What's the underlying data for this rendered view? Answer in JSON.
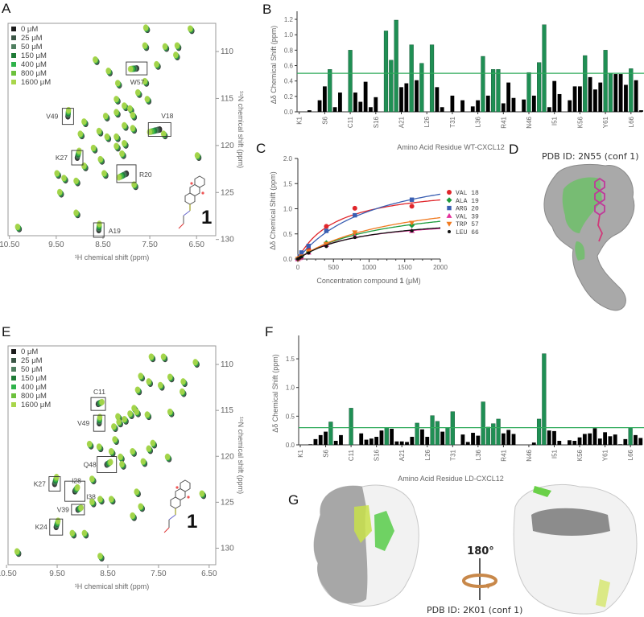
{
  "panel_labels": {
    "A": "A",
    "B": "B",
    "C": "C",
    "D": "D",
    "E": "E",
    "F": "F",
    "G": "G"
  },
  "structures": {
    "D": {
      "title": "PDB ID: 2N55 (conf 1)"
    },
    "G": {
      "title": "PDB ID: 2K01 (conf 1)",
      "rotation": "180°"
    }
  },
  "colors": {
    "conc": [
      "#1c1c1c",
      "#3b5646",
      "#4f7f60",
      "#1e7b36",
      "#2fb34b",
      "#6cc13c",
      "#a9d64b"
    ],
    "highlight": "#1f8f54",
    "bar": "#000000",
    "threshold_line": "#2eaa5a"
  },
  "chart_data": [
    {
      "id": "A",
      "type": "scatter",
      "subtype": "HSQC overlay",
      "xlabel": "¹H chemical shift (ppm)",
      "ylabel": "¹⁵N chemical shift (ppm)",
      "xlim": [
        10.53,
        6.09
      ],
      "ylim": [
        107.0,
        129.6
      ],
      "xticks": [
        {
          "v": 10.5,
          "t": "10.50"
        },
        {
          "v": 9.5,
          "t": "9.50"
        },
        {
          "v": 8.5,
          "t": "8.50"
        },
        {
          "v": 7.5,
          "t": "7.50"
        },
        {
          "v": 6.5,
          "t": "6.50"
        }
      ],
      "yticks": [
        {
          "v": 110,
          "t": "110"
        },
        {
          "v": 115,
          "t": "115"
        },
        {
          "v": 120,
          "t": "120"
        },
        {
          "v": 125,
          "t": "125"
        },
        {
          "v": 130,
          "t": "130"
        }
      ],
      "legend": [
        "0 μM",
        "25 μM",
        "50 μM",
        "150 μM",
        "400 μM",
        "800 μM",
        "1600 μM"
      ],
      "compound_label": "1",
      "labeled_peaks": [
        {
          "label": "W57",
          "h": 7.78,
          "n": 111.8
        },
        {
          "label": "V49",
          "h": 9.25,
          "n": 116.9
        },
        {
          "label": "V18",
          "h": 7.29,
          "n": 118.3
        },
        {
          "label": "K27",
          "h": 9.05,
          "n": 121.3
        },
        {
          "label": "R20",
          "h": 8.0,
          "n": 123.0
        },
        {
          "label": "A19",
          "h": 8.59,
          "n": 129.0
        }
      ],
      "peaks": [
        [
          7.55,
          107.7
        ],
        [
          6.6,
          107.8
        ],
        [
          7.57,
          109.6
        ],
        [
          7.14,
          109.7
        ],
        [
          6.88,
          109.6
        ],
        [
          6.91,
          110.6
        ],
        [
          8.63,
          111.1
        ],
        [
          7.32,
          111.6
        ],
        [
          8.35,
          112.3
        ],
        [
          8.15,
          113.6
        ],
        [
          7.57,
          113.4
        ],
        [
          7.72,
          114.6
        ],
        [
          8.18,
          115.3
        ],
        [
          8.01,
          116.0
        ],
        [
          7.52,
          115.3
        ],
        [
          8.41,
          117.1
        ],
        [
          8.18,
          116.7
        ],
        [
          7.89,
          116.3
        ],
        [
          7.83,
          117.0
        ],
        [
          8.87,
          117.7
        ],
        [
          8.95,
          119.0
        ],
        [
          8.55,
          118.7
        ],
        [
          8.38,
          119.3
        ],
        [
          8.18,
          119.3
        ],
        [
          8.01,
          118.1
        ],
        [
          7.83,
          118.4
        ],
        [
          7.17,
          119.0
        ],
        [
          8.67,
          120.5
        ],
        [
          8.18,
          120.3
        ],
        [
          8.01,
          120.0
        ],
        [
          8.87,
          122.4
        ],
        [
          8.52,
          121.7
        ],
        [
          8.44,
          123.2
        ],
        [
          9.45,
          123.2
        ],
        [
          9.3,
          123.7
        ],
        [
          9.04,
          124.0
        ],
        [
          9.39,
          125.2
        ],
        [
          7.8,
          124.4
        ],
        [
          9.04,
          127.4
        ],
        [
          10.29,
          128.9
        ],
        [
          6.45,
          121.3
        ],
        [
          8.06,
          121.1
        ]
      ]
    },
    {
      "id": "B",
      "type": "bar",
      "xlabel": "Amino Acid Residue WT-CXCL12",
      "ylabel": "Δδ Chemical Shift (ppm)",
      "ylim": [
        0,
        1.25
      ],
      "yticks": [
        {
          "v": 0,
          "t": "0.0"
        },
        {
          "v": 0.2,
          "t": "0.2"
        },
        {
          "v": 0.4,
          "t": "0.4"
        },
        {
          "v": 0.6,
          "t": "0.6"
        },
        {
          "v": 0.8,
          "t": "0.8"
        },
        {
          "v": 1.0,
          "t": "1.0"
        },
        {
          "v": 1.2,
          "t": "1.2"
        }
      ],
      "xticks": [
        {
          "r": 1,
          "t": "K1"
        },
        {
          "r": 6,
          "t": "S6"
        },
        {
          "r": 11,
          "t": "C11"
        },
        {
          "r": 16,
          "t": "S16"
        },
        {
          "r": 21,
          "t": "A21"
        },
        {
          "r": 26,
          "t": "L26"
        },
        {
          "r": 31,
          "t": "T31"
        },
        {
          "r": 36,
          "t": "L36"
        },
        {
          "r": 41,
          "t": "R41"
        },
        {
          "r": 46,
          "t": "N46"
        },
        {
          "r": 51,
          "t": "I51"
        },
        {
          "r": 56,
          "t": "K56"
        },
        {
          "r": 61,
          "t": "Y61"
        },
        {
          "r": 66,
          "t": "L66"
        }
      ],
      "threshold": 0.5,
      "values": [
        0,
        0,
        0.02,
        0,
        0.15,
        0.33,
        0.55,
        0.06,
        0.25,
        0,
        0.8,
        0.25,
        0.13,
        0.39,
        0.06,
        0.19,
        0,
        1.05,
        0.67,
        1.19,
        0.32,
        0.37,
        0.87,
        0.41,
        0.63,
        0,
        0.87,
        0.32,
        0.06,
        0,
        0.21,
        0,
        0.15,
        0,
        0.07,
        0.15,
        0.72,
        0.21,
        0.55,
        0.55,
        0.11,
        0.38,
        0.18,
        0,
        0.16,
        0.51,
        0.21,
        0.64,
        1.13,
        0.06,
        0.4,
        0.23,
        0,
        0.15,
        0.33,
        0.33,
        0.73,
        0.45,
        0.29,
        0.38,
        0.8,
        0.5,
        0.49,
        0.49,
        0.35,
        0.56,
        0.41,
        0.02
      ],
      "highlighted": [
        7,
        11,
        18,
        19,
        20,
        23,
        25,
        27,
        37,
        39,
        40,
        46,
        48,
        49,
        57,
        61,
        62,
        66
      ]
    },
    {
      "id": "C",
      "type": "line",
      "xlabel_prefix": "Concentration compound ",
      "xlabel_bold": "1",
      "xlabel_suffix": " (μM)",
      "ylabel": "Δδ Chemical Shift (ppm)",
      "xlim": [
        0,
        2000
      ],
      "ylim": [
        0,
        2.0
      ],
      "xticks": [
        {
          "v": 0,
          "t": "0"
        },
        {
          "v": 500,
          "t": "500"
        },
        {
          "v": 1000,
          "t": "1000"
        },
        {
          "v": 1500,
          "t": "1500"
        },
        {
          "v": 2000,
          "t": "2000"
        }
      ],
      "yticks": [
        {
          "v": 0,
          "t": "0.0"
        },
        {
          "v": 0.5,
          "t": "0.5"
        },
        {
          "v": 1.0,
          "t": "1.0"
        },
        {
          "v": 1.5,
          "t": "1.5"
        },
        {
          "v": 2.0,
          "t": "2.0"
        }
      ],
      "legend_position": "right",
      "series": [
        {
          "name": "VAL 18",
          "color": "#e0262b",
          "marker": "circle",
          "x": [
            0,
            25,
            50,
            150,
            400,
            800,
            1600
          ],
          "y": [
            0,
            0.03,
            0.07,
            0.2,
            0.65,
            1.01,
            1.05
          ],
          "fit": {
            "bmax": 1.5,
            "kd": 550
          }
        },
        {
          "name": "ALA 19",
          "color": "#1c9a3c",
          "marker": "diamond",
          "x": [
            0,
            25,
            50,
            150,
            400,
            800,
            1600
          ],
          "y": [
            0,
            0.02,
            0.05,
            0.14,
            0.32,
            0.5,
            0.67
          ],
          "fit": {
            "bmax": 1.2,
            "kd": 1200
          }
        },
        {
          "name": "ARG 20",
          "color": "#3a5fb2",
          "marker": "square",
          "x": [
            0,
            25,
            50,
            150,
            400,
            800,
            1600
          ],
          "y": [
            0,
            0.05,
            0.13,
            0.26,
            0.56,
            0.87,
            1.18
          ],
          "fit": {
            "bmax": 2.0,
            "kd": 1100
          }
        },
        {
          "name": "VAL 39",
          "color": "#e3309a",
          "marker": "triangle-up",
          "x": [
            0,
            25,
            50,
            150,
            400,
            800,
            1600
          ],
          "y": [
            0,
            0.02,
            0.04,
            0.13,
            0.28,
            0.45,
            0.56
          ],
          "fit": {
            "bmax": 0.85,
            "kd": 800
          }
        },
        {
          "name": "TRP 57",
          "color": "#f07a20",
          "marker": "triangle-down",
          "x": [
            0,
            25,
            50,
            150,
            400,
            800,
            1600
          ],
          "y": [
            0,
            0.02,
            0.05,
            0.15,
            0.3,
            0.53,
            0.72
          ],
          "fit": {
            "bmax": 1.4,
            "kd": 1400
          }
        },
        {
          "name": "LEU 66",
          "color": "#111111",
          "marker": "dot",
          "x": [
            0,
            25,
            50,
            150,
            400,
            800,
            1600
          ],
          "y": [
            0,
            0.02,
            0.04,
            0.12,
            0.25,
            0.43,
            0.56
          ],
          "fit": {
            "bmax": 0.9,
            "kd": 900
          }
        }
      ]
    },
    {
      "id": "E",
      "type": "scatter",
      "subtype": "HSQC overlay",
      "xlabel": "¹H chemical shift (ppm)",
      "ylabel": "¹⁵N chemical shift (ppm)",
      "xlim": [
        10.47,
        6.37
      ],
      "ylim": [
        107.98,
        131.8
      ],
      "xticks": [
        {
          "v": 10.5,
          "t": "10.50"
        },
        {
          "v": 9.5,
          "t": "9.50"
        },
        {
          "v": 8.5,
          "t": "8.50"
        },
        {
          "v": 7.5,
          "t": "7.50"
        },
        {
          "v": 6.5,
          "t": "6.50"
        }
      ],
      "yticks": [
        {
          "v": 110,
          "t": "110"
        },
        {
          "v": 115,
          "t": "115"
        },
        {
          "v": 120,
          "t": "120"
        },
        {
          "v": 125,
          "t": "125"
        },
        {
          "v": 130,
          "t": "130"
        }
      ],
      "legend": [
        "0 μM",
        "25 μM",
        "50 μM",
        "150 μM",
        "400 μM",
        "800 μM",
        "1600 μM"
      ],
      "compound_label": "1",
      "labeled_peaks": [
        {
          "label": "C11",
          "h": 8.69,
          "n": 114.3
        },
        {
          "label": "V49",
          "h": 8.67,
          "n": 116.4
        },
        {
          "label": "Q48",
          "h": 8.52,
          "n": 120.9
        },
        {
          "label": "K27",
          "h": 9.55,
          "n": 123.0
        },
        {
          "label": "I28",
          "h": 9.15,
          "n": 123.8
        },
        {
          "label": "I38",
          "h": 9.15,
          "n": 123.8
        },
        {
          "label": "V39",
          "h": 9.09,
          "n": 125.8
        },
        {
          "label": "K24",
          "h": 9.52,
          "n": 127.7
        }
      ],
      "peaks": [
        [
          7.61,
          109.4
        ],
        [
          7.37,
          109.4
        ],
        [
          6.74,
          110.0
        ],
        [
          7.82,
          111.5
        ],
        [
          7.66,
          112.1
        ],
        [
          7.43,
          112.5
        ],
        [
          7.24,
          111.6
        ],
        [
          6.98,
          112.1
        ],
        [
          7.0,
          113.2
        ],
        [
          7.88,
          113.0
        ],
        [
          7.95,
          115.0
        ],
        [
          8.03,
          115.6
        ],
        [
          8.27,
          115.9
        ],
        [
          8.25,
          116.5
        ],
        [
          7.69,
          115.7
        ],
        [
          7.9,
          115.4
        ],
        [
          7.24,
          115.4
        ],
        [
          8.35,
          117.0
        ],
        [
          8.14,
          116.2
        ],
        [
          8.83,
          118.9
        ],
        [
          8.64,
          119.2
        ],
        [
          8.33,
          118.4
        ],
        [
          8.4,
          119.7
        ],
        [
          8.22,
          120.3
        ],
        [
          8.19,
          121.1
        ],
        [
          7.98,
          119.7
        ],
        [
          7.77,
          120.8
        ],
        [
          7.58,
          118.8
        ],
        [
          7.66,
          119.4
        ],
        [
          7.29,
          120.3
        ],
        [
          8.78,
          122.7
        ],
        [
          8.62,
          124.9
        ],
        [
          8.78,
          125.2
        ],
        [
          8.4,
          124.9
        ],
        [
          7.9,
          124.1
        ],
        [
          7.82,
          125.7
        ],
        [
          7.98,
          126.7
        ],
        [
          9.17,
          128.6
        ],
        [
          8.93,
          128.6
        ],
        [
          8.62,
          131.1
        ],
        [
          10.26,
          130.6
        ],
        [
          6.61,
          124.3
        ]
      ]
    },
    {
      "id": "F",
      "type": "bar",
      "xlabel": "Amino Acid Residue LD-CXCL12",
      "ylabel": "Δδ Chemical Shift (ppm)",
      "ylim": [
        0,
        1.9
      ],
      "yticks": [
        {
          "v": 0,
          "t": "0.0"
        },
        {
          "v": 0.5,
          "t": "0.5"
        },
        {
          "v": 1.0,
          "t": "1.0"
        },
        {
          "v": 1.5,
          "t": "1.5"
        }
      ],
      "xticks": [
        {
          "r": 1,
          "t": "K1"
        },
        {
          "r": 6,
          "t": "S6"
        },
        {
          "r": 11,
          "t": "C11"
        },
        {
          "r": 16,
          "t": "S16"
        },
        {
          "r": 21,
          "t": "A21"
        },
        {
          "r": 26,
          "t": "L26"
        },
        {
          "r": 31,
          "t": "T31"
        },
        {
          "r": 36,
          "t": "L36"
        },
        {
          "r": 41,
          "t": "R41"
        },
        {
          "r": 46,
          "t": "N46"
        },
        {
          "r": 51,
          "t": "I51"
        },
        {
          "r": 56,
          "t": "K56"
        },
        {
          "r": 61,
          "t": "Y61"
        },
        {
          "r": 66,
          "t": "L66"
        }
      ],
      "threshold": 0.3,
      "values": [
        0,
        0,
        0.01,
        0.1,
        0.17,
        0.23,
        0.4,
        0.07,
        0.17,
        0,
        0.64,
        0,
        0.2,
        0.09,
        0.11,
        0.14,
        0.25,
        0.3,
        0.28,
        0.06,
        0.06,
        0.05,
        0.14,
        0.38,
        0.27,
        0.14,
        0.51,
        0.41,
        0.23,
        0.3,
        0.58,
        0,
        0.18,
        0.05,
        0.21,
        0.16,
        0.75,
        0.31,
        0.37,
        0.45,
        0.2,
        0.26,
        0.19,
        0,
        0,
        0,
        0.04,
        0.45,
        1.59,
        0.25,
        0.24,
        0.07,
        0,
        0.08,
        0.07,
        0.13,
        0.19,
        0.2,
        0.29,
        0.11,
        0.22,
        0.15,
        0.18,
        0.01,
        0.1,
        0.29,
        0.17,
        0.12
      ],
      "highlighted": [
        7,
        11,
        18,
        24,
        27,
        28,
        30,
        31,
        37,
        38,
        39,
        40,
        48,
        49,
        66
      ]
    }
  ]
}
